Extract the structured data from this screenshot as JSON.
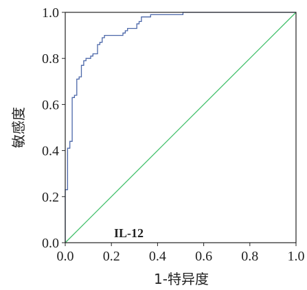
{
  "chart_data": {
    "type": "line",
    "xlabel": "1-特异度",
    "ylabel": "敏感度",
    "annotation": "IL-12",
    "xlim": [
      0,
      1
    ],
    "ylim": [
      0,
      1
    ],
    "xticks": [
      0.0,
      0.2,
      0.4,
      0.6,
      0.8,
      1.0
    ],
    "yticks": [
      0.0,
      0.2,
      0.4,
      0.6,
      0.8,
      1.0
    ],
    "xtick_labels": [
      "0.0",
      "0.2",
      "0.4",
      "0.6",
      "0.8",
      "1.0"
    ],
    "ytick_labels": [
      "0.0",
      "0.2",
      "0.4",
      "0.6",
      "0.8",
      "1.0"
    ],
    "grid": false,
    "legend": "none",
    "series": [
      {
        "color": "#4a66a8",
        "x": [
          0.0,
          0.0,
          0.01,
          0.01,
          0.02,
          0.02,
          0.03,
          0.03,
          0.04,
          0.04,
          0.05,
          0.05,
          0.06,
          0.06,
          0.07,
          0.07,
          0.08,
          0.08,
          0.09,
          0.09,
          0.11,
          0.11,
          0.12,
          0.12,
          0.14,
          0.14,
          0.15,
          0.15,
          0.16,
          0.16,
          0.17,
          0.17,
          0.25,
          0.25,
          0.26,
          0.26,
          0.27,
          0.27,
          0.31,
          0.31,
          0.32,
          0.32,
          0.33,
          0.33,
          0.37,
          0.37,
          0.51,
          0.51,
          1.0
        ],
        "y": [
          0.0,
          0.23,
          0.23,
          0.41,
          0.41,
          0.44,
          0.44,
          0.63,
          0.63,
          0.64,
          0.64,
          0.71,
          0.71,
          0.72,
          0.72,
          0.77,
          0.77,
          0.79,
          0.79,
          0.8,
          0.8,
          0.81,
          0.81,
          0.82,
          0.82,
          0.86,
          0.86,
          0.87,
          0.87,
          0.89,
          0.89,
          0.9,
          0.9,
          0.91,
          0.91,
          0.92,
          0.92,
          0.93,
          0.93,
          0.95,
          0.95,
          0.96,
          0.96,
          0.98,
          0.98,
          0.99,
          0.99,
          1.0,
          1.0
        ]
      },
      {
        "color": "#3fbf68",
        "x": [
          0.0,
          1.0
        ],
        "y": [
          0.0,
          1.0
        ]
      }
    ]
  }
}
